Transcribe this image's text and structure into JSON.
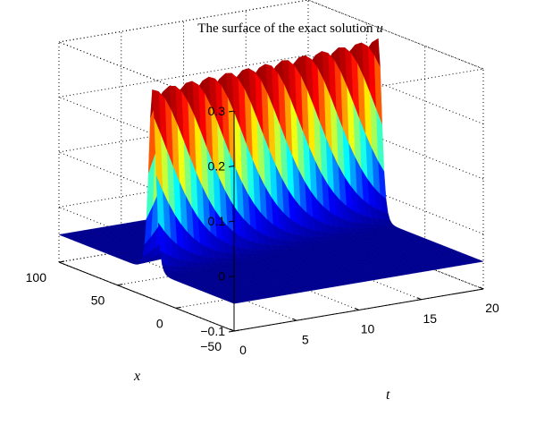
{
  "chart_data": {
    "type": "surface",
    "title": "The surface of the exact solution",
    "title_var": "u",
    "xlabel": "t",
    "ylabel": "x",
    "zlabel": "",
    "t_range": [
      0,
      20
    ],
    "x_range": [
      -50,
      100
    ],
    "z_range": [
      -0.1,
      0.3
    ],
    "t_ticks": [
      "0",
      "5",
      "10",
      "15",
      "20"
    ],
    "x_ticks": [
      "-50",
      "0",
      "50",
      "100"
    ],
    "z_ticks": [
      "-0.1",
      "0",
      "0.1",
      "0.2",
      "0.3"
    ],
    "grid": true,
    "colormap": "jet",
    "colormap_stops": [
      "#00008f",
      "#0000ff",
      "#00ffff",
      "#ffff00",
      "#ff0000",
      "#800000"
    ],
    "surface": {
      "baseline": -0.05,
      "peak_amplitude": 0.33,
      "peak_x_at_t0": 20,
      "peak_speed": 1.0,
      "width_x": 4.0
    }
  }
}
